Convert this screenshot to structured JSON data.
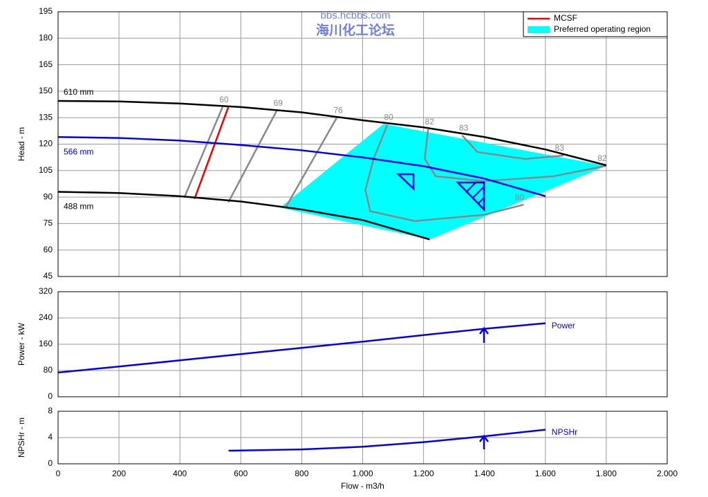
{
  "chart_data": [
    {
      "type": "line",
      "ylabel": "Head - m",
      "ylim": [
        45,
        195
      ],
      "yticks": [
        45,
        60,
        75,
        90,
        105,
        120,
        135,
        150,
        165,
        180,
        195
      ],
      "grid": true,
      "watermark": [
        "bbs.hcbbs.com",
        "海川化工论坛"
      ],
      "series": [
        {
          "name": "610 mm",
          "color": "#000000",
          "x": [
            0,
            200,
            400,
            600,
            800,
            1000,
            1200,
            1400,
            1600,
            1800
          ],
          "values": [
            144.5,
            144.2,
            143,
            141,
            138,
            133.5,
            129.5,
            124,
            117,
            108
          ]
        },
        {
          "name": "566 mm",
          "color": "#0000ee",
          "x": [
            0,
            200,
            400,
            600,
            800,
            1000,
            1200,
            1400,
            1600
          ],
          "values": [
            124,
            123.5,
            122,
            119.5,
            116.5,
            112.5,
            107.5,
            100.5,
            90.5
          ]
        },
        {
          "name": "488 mm",
          "color": "#000000",
          "x": [
            0,
            200,
            400,
            600,
            800,
            1000,
            1200,
            1220
          ],
          "values": [
            93,
            92.3,
            90.5,
            87.5,
            83,
            77,
            67,
            66
          ]
        }
      ],
      "mcsf": {
        "name": "MCSF",
        "color": "#ee0000",
        "x": [
          448,
          559
        ],
        "values": [
          89,
          141
        ]
      },
      "region": {
        "name": "Preferred operating region",
        "color": "#00ffff",
        "x": [
          729,
          1069,
          1800,
          1220
        ],
        "values": [
          84,
          131.5,
          107.7,
          66
        ]
      },
      "efficiency_lines": [
        {
          "labels": [
            "60"
          ],
          "x": [
            540,
            415
          ],
          "values": [
            141,
            90
          ]
        },
        {
          "labels": [
            "69"
          ],
          "x": [
            718,
            559
          ],
          "values": [
            139,
            87
          ]
        },
        {
          "labels": [
            "76"
          ],
          "x": [
            915,
            747
          ],
          "values": [
            135,
            84
          ]
        },
        {
          "labels": [
            "80",
            "80"
          ],
          "x": [
            1081,
            1036,
            1009,
            1025,
            1172,
            1400,
            1529
          ],
          "values": [
            131,
            111.6,
            94,
            82,
            76.4,
            80,
            85.7
          ]
        },
        {
          "labels": [
            "82",
            "82"
          ],
          "x": [
            1215,
            1204,
            1240,
            1400,
            1627,
            1800
          ],
          "values": [
            128.4,
            111.6,
            101.8,
            99,
            101.8,
            107.7
          ]
        },
        {
          "labels": [
            "83",
            "83"
          ],
          "x": [
            1327,
            1377,
            1534,
            1660
          ],
          "values": [
            124.9,
            115.5,
            111.6,
            113.6
          ]
        }
      ]
    },
    {
      "type": "line",
      "ylabel": "Power - kW",
      "ylim": [
        0,
        320
      ],
      "yticks": [
        0,
        80,
        160,
        240,
        320
      ],
      "grid": true,
      "series": [
        {
          "name": "Power",
          "color": "#0000ee",
          "x": [
            0,
            200,
            400,
            600,
            800,
            1000,
            1200,
            1400,
            1600
          ],
          "values": [
            74,
            92,
            111,
            130,
            149,
            168,
            188,
            207,
            224
          ]
        }
      ]
    },
    {
      "type": "line",
      "ylabel": "NPSHr - m",
      "xlabel": "Flow - m3/h",
      "ylim": [
        0,
        8
      ],
      "yticks": [
        0,
        4,
        8
      ],
      "grid": true,
      "xlim": [
        0,
        2000
      ],
      "xticks": [
        0,
        200,
        400,
        600,
        800,
        {
          "value": 1000,
          "label": "1.000"
        },
        {
          "value": 1200,
          "label": "1.200"
        },
        {
          "value": 1400,
          "label": "1.400"
        },
        {
          "value": 1600,
          "label": "1.600"
        },
        {
          "value": 1800,
          "label": "1.800"
        },
        {
          "value": 2000,
          "label": "2.000"
        }
      ],
      "series": [
        {
          "name": "NPSHr",
          "color": "#0000ee",
          "x": [
            560,
            800,
            1000,
            1200,
            1400,
            1600
          ],
          "values": [
            2.0,
            2.2,
            2.6,
            3.3,
            4.2,
            5.2
          ]
        }
      ]
    }
  ]
}
